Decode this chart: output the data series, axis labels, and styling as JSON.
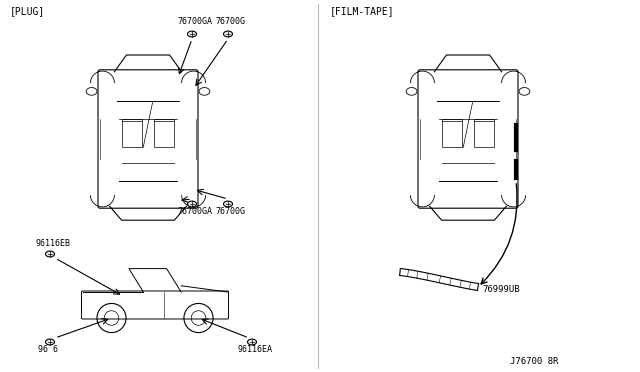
{
  "bg_color": "#ffffff",
  "line_color": "#000000",
  "diagram_number": "J76700 8R",
  "left_section_label": "[PLUG]",
  "right_section_label": "[FILM-TAPE]",
  "parts": {
    "left": {
      "top_labels": [
        "76700GA",
        "76700G"
      ],
      "middle_labels": [
        "76700GA",
        "76700G"
      ],
      "side_labels": [
        "96116EB",
        "96 6",
        "96116EA"
      ]
    },
    "right": {
      "labels": [
        "76999UB"
      ]
    }
  }
}
